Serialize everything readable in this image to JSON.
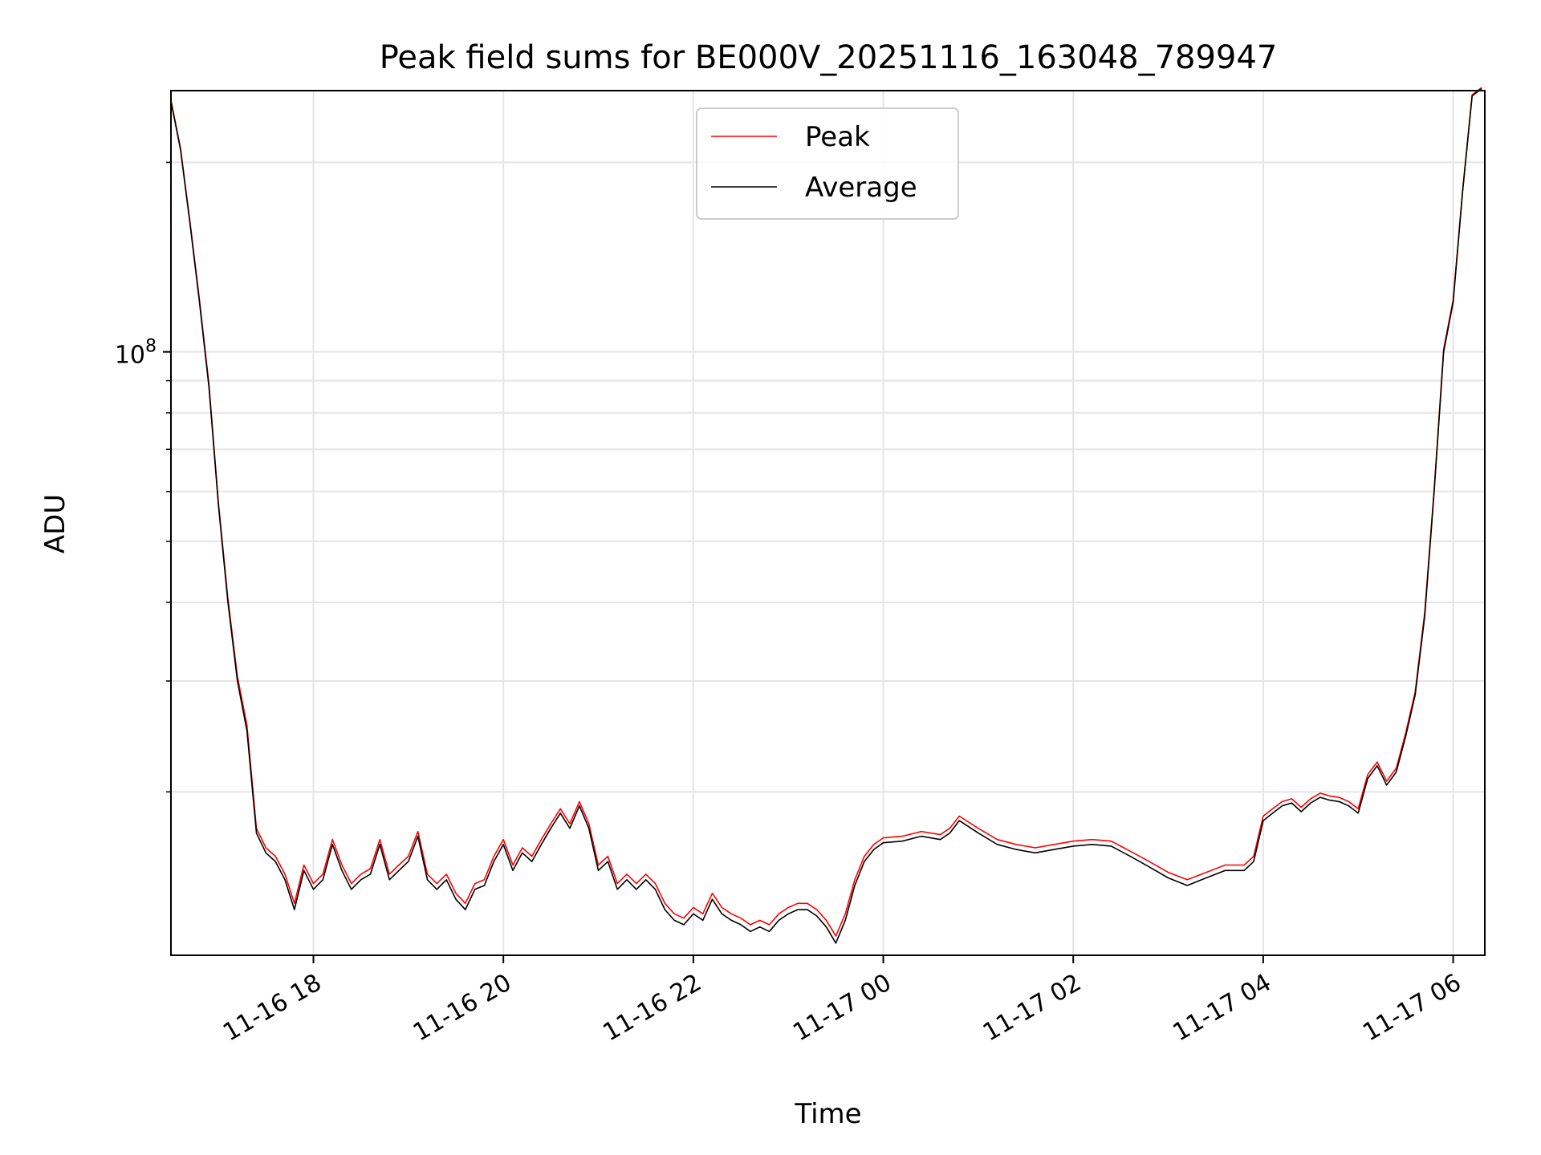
{
  "chart_data": {
    "type": "line",
    "title": "Peak field sums for BE000V_20251116_163048_789947",
    "xlabel": "Time",
    "ylabel": "ADU",
    "yscale": "log",
    "xlim": [
      "2025-11-16 16:30",
      "2025-11-17 06:20"
    ],
    "ylim": [
      11000000,
      260000000
    ],
    "grid": true,
    "legend_position": "upper center",
    "x_ticks": [
      "11-16 18",
      "11-16 20",
      "11-16 22",
      "11-17 00",
      "11-17 02",
      "11-17 04",
      "11-17 06"
    ],
    "y_tick_labels": [
      {
        "value": 100000000,
        "base": "10",
        "exp": "8"
      }
    ],
    "x": [
      "2025-11-16 16:30",
      "2025-11-16 16:36",
      "2025-11-16 16:42",
      "2025-11-16 16:48",
      "2025-11-16 16:54",
      "2025-11-16 17:00",
      "2025-11-16 17:06",
      "2025-11-16 17:12",
      "2025-11-16 17:18",
      "2025-11-16 17:24",
      "2025-11-16 17:30",
      "2025-11-16 17:36",
      "2025-11-16 17:42",
      "2025-11-16 17:48",
      "2025-11-16 17:54",
      "2025-11-16 18:00",
      "2025-11-16 18:06",
      "2025-11-16 18:12",
      "2025-11-16 18:18",
      "2025-11-16 18:24",
      "2025-11-16 18:30",
      "2025-11-16 18:36",
      "2025-11-16 18:42",
      "2025-11-16 18:48",
      "2025-11-16 18:54",
      "2025-11-16 19:00",
      "2025-11-16 19:06",
      "2025-11-16 19:12",
      "2025-11-16 19:18",
      "2025-11-16 19:24",
      "2025-11-16 19:30",
      "2025-11-16 19:36",
      "2025-11-16 19:42",
      "2025-11-16 19:48",
      "2025-11-16 19:54",
      "2025-11-16 20:00",
      "2025-11-16 20:06",
      "2025-11-16 20:12",
      "2025-11-16 20:18",
      "2025-11-16 20:24",
      "2025-11-16 20:30",
      "2025-11-16 20:36",
      "2025-11-16 20:42",
      "2025-11-16 20:48",
      "2025-11-16 20:54",
      "2025-11-16 21:00",
      "2025-11-16 21:06",
      "2025-11-16 21:12",
      "2025-11-16 21:18",
      "2025-11-16 21:24",
      "2025-11-16 21:30",
      "2025-11-16 21:36",
      "2025-11-16 21:42",
      "2025-11-16 21:48",
      "2025-11-16 21:54",
      "2025-11-16 22:00",
      "2025-11-16 22:06",
      "2025-11-16 22:12",
      "2025-11-16 22:18",
      "2025-11-16 22:24",
      "2025-11-16 22:30",
      "2025-11-16 22:36",
      "2025-11-16 22:42",
      "2025-11-16 22:48",
      "2025-11-16 22:54",
      "2025-11-16 23:00",
      "2025-11-16 23:06",
      "2025-11-16 23:12",
      "2025-11-16 23:18",
      "2025-11-16 23:24",
      "2025-11-16 23:30",
      "2025-11-16 23:36",
      "2025-11-16 23:42",
      "2025-11-16 23:48",
      "2025-11-16 23:54",
      "2025-11-17 00:00",
      "2025-11-17 00:12",
      "2025-11-17 00:24",
      "2025-11-17 00:36",
      "2025-11-17 00:42",
      "2025-11-17 00:48",
      "2025-11-17 01:00",
      "2025-11-17 01:12",
      "2025-11-17 01:24",
      "2025-11-17 01:36",
      "2025-11-17 01:48",
      "2025-11-17 02:00",
      "2025-11-17 02:12",
      "2025-11-17 02:24",
      "2025-11-17 02:36",
      "2025-11-17 02:48",
      "2025-11-17 03:00",
      "2025-11-17 03:12",
      "2025-11-17 03:24",
      "2025-11-17 03:36",
      "2025-11-17 03:48",
      "2025-11-17 03:54",
      "2025-11-17 04:00",
      "2025-11-17 04:06",
      "2025-11-17 04:12",
      "2025-11-17 04:18",
      "2025-11-17 04:24",
      "2025-11-17 04:30",
      "2025-11-17 04:36",
      "2025-11-17 04:42",
      "2025-11-17 04:48",
      "2025-11-17 04:54",
      "2025-11-17 05:00",
      "2025-11-17 05:06",
      "2025-11-17 05:12",
      "2025-11-17 05:18",
      "2025-11-17 05:24",
      "2025-11-17 05:30",
      "2025-11-17 05:36",
      "2025-11-17 05:42",
      "2025-11-17 05:48",
      "2025-11-17 05:54",
      "2025-11-17 06:00",
      "2025-11-17 06:06",
      "2025-11-17 06:12",
      "2025-11-17 06:18"
    ],
    "series": [
      {
        "name": "Average",
        "color": "#000000",
        "values": [
          250000000,
          210000000,
          160000000,
          120000000,
          88000000,
          57000000,
          40000000,
          30000000,
          25000000,
          17200000,
          16000000,
          15500000,
          14500000,
          13000000,
          15000000,
          14000000,
          14500000,
          16500000,
          15000000,
          14000000,
          14500000,
          14800000,
          16500000,
          14500000,
          15000000,
          15500000,
          17000000,
          14500000,
          14000000,
          14500000,
          13500000,
          13000000,
          14000000,
          14200000,
          15500000,
          16500000,
          15000000,
          16000000,
          15500000,
          16500000,
          17500000,
          18500000,
          17500000,
          19000000,
          17500000,
          15000000,
          15500000,
          14000000,
          14500000,
          14000000,
          14500000,
          14000000,
          13000000,
          12500000,
          12300000,
          12800000,
          12500000,
          13500000,
          12800000,
          12500000,
          12300000,
          12000000,
          12200000,
          12000000,
          12500000,
          12800000,
          13000000,
          13000000,
          12700000,
          12200000,
          11500000,
          12500000,
          14200000,
          15500000,
          16200000,
          16600000,
          16700000,
          17000000,
          16800000,
          17200000,
          18000000,
          17200000,
          16500000,
          16200000,
          16000000,
          16200000,
          16400000,
          16500000,
          16400000,
          15800000,
          15200000,
          14600000,
          14200000,
          14600000,
          15000000,
          15000000,
          15500000,
          18000000,
          18500000,
          19000000,
          19200000,
          18600000,
          19200000,
          19600000,
          19400000,
          19300000,
          19000000,
          18500000,
          21000000,
          22000000,
          20500000,
          21500000,
          24500000,
          28500000,
          38000000,
          60000000,
          100000000,
          120000000,
          180000000,
          255000000,
          262000000
        ]
      },
      {
        "name": "Peak",
        "color": "#ff0000",
        "values": [
          251000000,
          211000000,
          161000000,
          121000000,
          89000000,
          57500000,
          40500000,
          30500000,
          25500000,
          17500000,
          16300000,
          15800000,
          14800000,
          13300000,
          15300000,
          14300000,
          14800000,
          16800000,
          15300000,
          14300000,
          14800000,
          15100000,
          16800000,
          14800000,
          15300000,
          15800000,
          17300000,
          14800000,
          14300000,
          14800000,
          13800000,
          13300000,
          14300000,
          14500000,
          15800000,
          16800000,
          15300000,
          16300000,
          15800000,
          16800000,
          17800000,
          18800000,
          17800000,
          19300000,
          17800000,
          15300000,
          15800000,
          14300000,
          14800000,
          14300000,
          14800000,
          14300000,
          13300000,
          12800000,
          12600000,
          13100000,
          12800000,
          13800000,
          13100000,
          12800000,
          12600000,
          12300000,
          12500000,
          12300000,
          12800000,
          13100000,
          13300000,
          13300000,
          13000000,
          12500000,
          11800000,
          12800000,
          14500000,
          15800000,
          16500000,
          16900000,
          17000000,
          17300000,
          17100000,
          17500000,
          18300000,
          17500000,
          16800000,
          16500000,
          16300000,
          16500000,
          16700000,
          16800000,
          16700000,
          16100000,
          15500000,
          14900000,
          14500000,
          14900000,
          15300000,
          15300000,
          15800000,
          18300000,
          18800000,
          19300000,
          19500000,
          18900000,
          19500000,
          19900000,
          19700000,
          19600000,
          19300000,
          18800000,
          21300000,
          22300000,
          20800000,
          21800000,
          24800000,
          28800000,
          38500000,
          60500000,
          101000000,
          121000000,
          181000000,
          256000000,
          263000000
        ]
      }
    ]
  }
}
